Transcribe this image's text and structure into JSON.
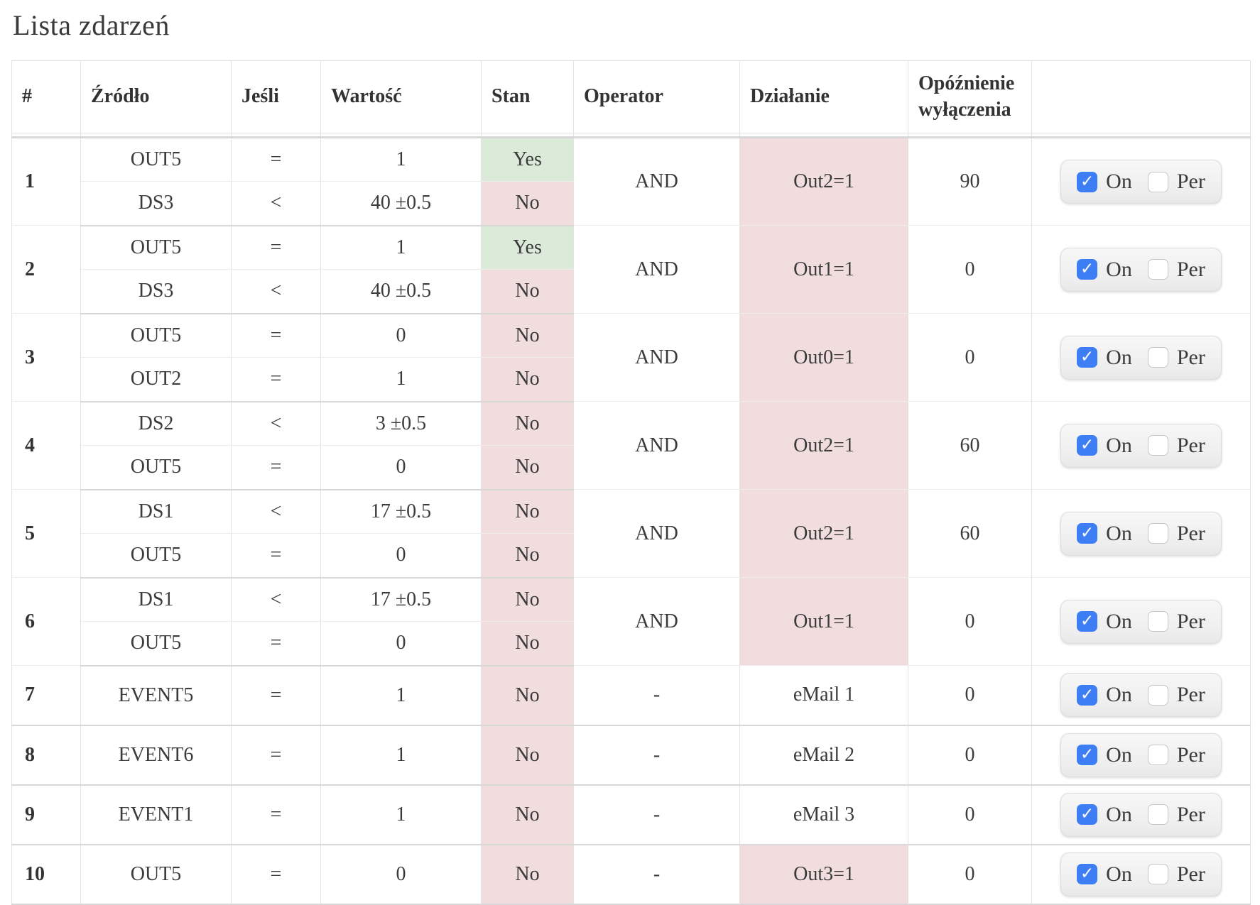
{
  "page": {
    "title": "Lista zdarzeń"
  },
  "table": {
    "headers": {
      "num": "#",
      "source": "Źródło",
      "if": "Jeśli",
      "value": "Wartość",
      "state": "Stan",
      "operator": "Operator",
      "action": "Działanie",
      "delay": "Opóźnienie wyłączenia",
      "controls": ""
    },
    "toggle": {
      "on_label": "On",
      "per_label": "Per"
    },
    "colors": {
      "state_yes": "#dcead9",
      "state_no": "#f1dddd",
      "action_highlight": "#f1dddd",
      "checkbox_blue": "#3e7ef5"
    },
    "rows": [
      {
        "num": "1",
        "conditions": [
          {
            "source": "OUT5",
            "if": "=",
            "value": "1",
            "state": "Yes"
          },
          {
            "source": "DS3",
            "if": "<",
            "value": "40 ±0.5",
            "state": "No"
          }
        ],
        "operator": "AND",
        "action": "Out2=1",
        "action_highlight": true,
        "delay": "90",
        "on": true,
        "per": false
      },
      {
        "num": "2",
        "conditions": [
          {
            "source": "OUT5",
            "if": "=",
            "value": "1",
            "state": "Yes"
          },
          {
            "source": "DS3",
            "if": "<",
            "value": "40 ±0.5",
            "state": "No"
          }
        ],
        "operator": "AND",
        "action": "Out1=1",
        "action_highlight": true,
        "delay": "0",
        "on": true,
        "per": false
      },
      {
        "num": "3",
        "conditions": [
          {
            "source": "OUT5",
            "if": "=",
            "value": "0",
            "state": "No"
          },
          {
            "source": "OUT2",
            "if": "=",
            "value": "1",
            "state": "No"
          }
        ],
        "operator": "AND",
        "action": "Out0=1",
        "action_highlight": true,
        "delay": "0",
        "on": true,
        "per": false
      },
      {
        "num": "4",
        "conditions": [
          {
            "source": "DS2",
            "if": "<",
            "value": "3 ±0.5",
            "state": "No"
          },
          {
            "source": "OUT5",
            "if": "=",
            "value": "0",
            "state": "No"
          }
        ],
        "operator": "AND",
        "action": "Out2=1",
        "action_highlight": true,
        "delay": "60",
        "on": true,
        "per": false
      },
      {
        "num": "5",
        "conditions": [
          {
            "source": "DS1",
            "if": "<",
            "value": "17 ±0.5",
            "state": "No"
          },
          {
            "source": "OUT5",
            "if": "=",
            "value": "0",
            "state": "No"
          }
        ],
        "operator": "AND",
        "action": "Out2=1",
        "action_highlight": true,
        "delay": "60",
        "on": true,
        "per": false
      },
      {
        "num": "6",
        "conditions": [
          {
            "source": "DS1",
            "if": "<",
            "value": "17 ±0.5",
            "state": "No"
          },
          {
            "source": "OUT5",
            "if": "=",
            "value": "0",
            "state": "No"
          }
        ],
        "operator": "AND",
        "action": "Out1=1",
        "action_highlight": true,
        "delay": "0",
        "on": true,
        "per": false
      },
      {
        "num": "7",
        "conditions": [
          {
            "source": "EVENT5",
            "if": "=",
            "value": "1",
            "state": "No"
          }
        ],
        "operator": "-",
        "action": "eMail 1",
        "action_highlight": false,
        "delay": "0",
        "on": true,
        "per": false
      },
      {
        "num": "8",
        "conditions": [
          {
            "source": "EVENT6",
            "if": "=",
            "value": "1",
            "state": "No"
          }
        ],
        "operator": "-",
        "action": "eMail 2",
        "action_highlight": false,
        "delay": "0",
        "on": true,
        "per": false
      },
      {
        "num": "9",
        "conditions": [
          {
            "source": "EVENT1",
            "if": "=",
            "value": "1",
            "state": "No"
          }
        ],
        "operator": "-",
        "action": "eMail 3",
        "action_highlight": false,
        "delay": "0",
        "on": true,
        "per": false
      },
      {
        "num": "10",
        "conditions": [
          {
            "source": "OUT5",
            "if": "=",
            "value": "0",
            "state": "No"
          }
        ],
        "operator": "-",
        "action": "Out3=1",
        "action_highlight": true,
        "delay": "0",
        "on": true,
        "per": false
      }
    ]
  }
}
